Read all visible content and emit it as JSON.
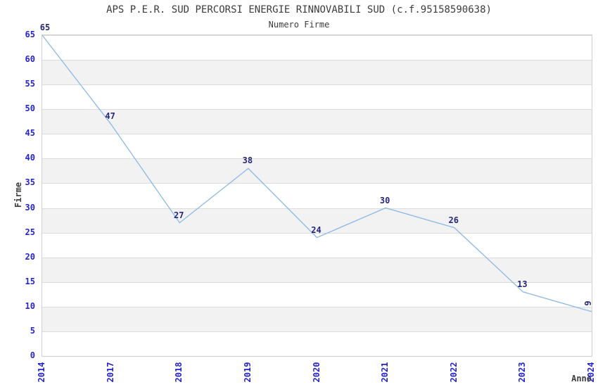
{
  "chart_data": {
    "type": "line",
    "title": "APS P.E.R. SUD PERCORSI ENERGIE RINNOVABILI SUD (c.f.95158590638)",
    "subtitle": "Numero Firme",
    "xlabel": "Anno",
    "ylabel": "Firme",
    "x": [
      "2014",
      "2017",
      "2018",
      "2019",
      "2020",
      "2021",
      "2022",
      "2023",
      "2024"
    ],
    "values": [
      65,
      47,
      27,
      38,
      24,
      30,
      26,
      13,
      9
    ],
    "ylim": [
      0,
      65
    ],
    "ytick_step": 5,
    "yticks": [
      0,
      5,
      10,
      15,
      20,
      25,
      30,
      35,
      40,
      45,
      50,
      55,
      60,
      65
    ],
    "grid": "horizontal-bands-alternating",
    "legend": "none",
    "markers": "none",
    "x_tick_rotation": 90,
    "last_label_rotated": true,
    "colors": {
      "line": "#8cb8e6",
      "tick_labels": "#2424cc",
      "data_labels": "#26267c",
      "titles": "#3c3c3c",
      "band_gray": "#f2f2f2",
      "band_white": "#ffffff",
      "gridline": "#dcdcdc",
      "plot_border": "#d0d0d0",
      "background": "#ffffff"
    }
  }
}
